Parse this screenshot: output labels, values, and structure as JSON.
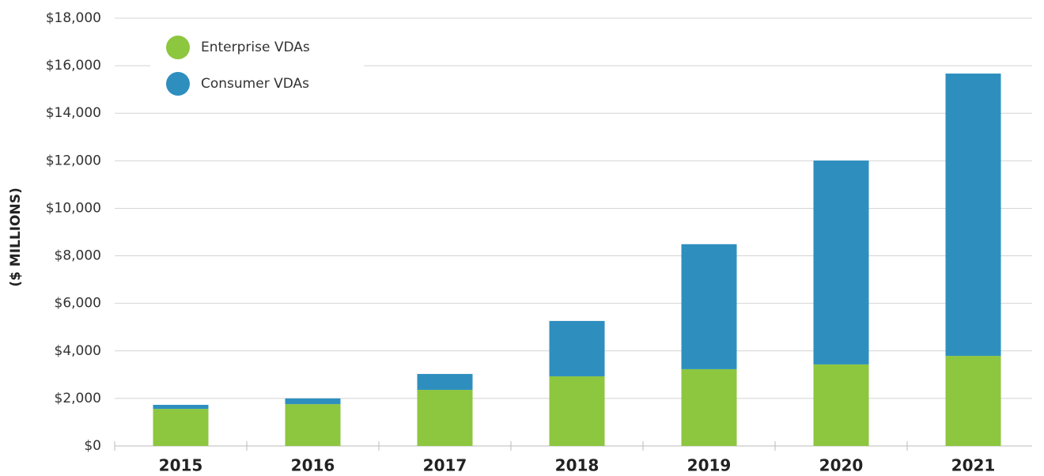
{
  "chart_data": {
    "type": "stacked_bar",
    "ylabel": "($ MILLIONS)",
    "categories": [
      "2015",
      "2016",
      "2017",
      "2018",
      "2019",
      "2020",
      "2021"
    ],
    "series": [
      {
        "name": "Enterprise VDAs",
        "color": "#8dc63f",
        "values": [
          1560,
          1760,
          2360,
          2930,
          3230,
          3430,
          3790
        ]
      },
      {
        "name": "Consumer VDAs",
        "color": "#2e8fbf",
        "values": [
          170,
          240,
          670,
          2330,
          5260,
          8580,
          11880
        ]
      }
    ],
    "ylim": [
      0,
      18000
    ],
    "yticks": [
      {
        "value": 0,
        "label": "$0"
      },
      {
        "value": 2000,
        "label": "$2,000"
      },
      {
        "value": 4000,
        "label": "$4,000"
      },
      {
        "value": 6000,
        "label": "$6,000"
      },
      {
        "value": 8000,
        "label": "$8,000"
      },
      {
        "value": 10000,
        "label": "$10,000"
      },
      {
        "value": 12000,
        "label": "$12,000"
      },
      {
        "value": 14000,
        "label": "$14,000"
      },
      {
        "value": 16000,
        "label": "$16,000"
      },
      {
        "value": 18000,
        "label": "$18,000"
      }
    ],
    "grid": true,
    "legend": "upper left"
  }
}
